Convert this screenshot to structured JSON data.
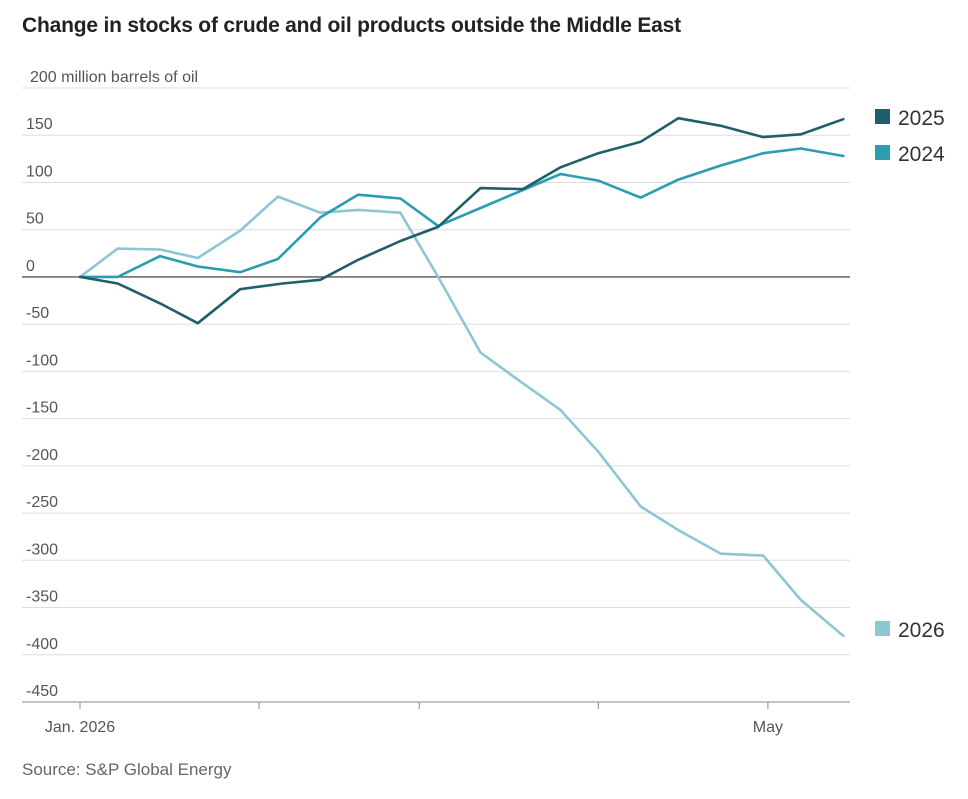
{
  "chart_data": {
    "type": "line",
    "title": "Change in stocks of crude and oil products outside the Middle East",
    "ylabel": "",
    "y_unit_label": "200 million barrels of oil",
    "source": "Source: S&P Global Energy",
    "ylim": [
      -450,
      200
    ],
    "y_ticks": [
      150,
      100,
      50,
      0,
      -50,
      -100,
      -150,
      -200,
      -250,
      -300,
      -350,
      -400,
      -450
    ],
    "y_tick_labels": [
      "150",
      "100",
      "50",
      "0",
      "-50",
      "-100",
      "-150",
      "-200",
      "-250",
      "-300",
      "-350",
      "-400",
      "-450"
    ],
    "x_range_days": [
      0,
      163
    ],
    "x_ticks_days": [
      0,
      38,
      72,
      110,
      146
    ],
    "x_tick_labels": [
      "Jan. 2026",
      "",
      "",
      "",
      "May"
    ],
    "grid": true,
    "legend": "right",
    "series": [
      {
        "name": "2025",
        "color": "#1f5f6b",
        "x_days": [
          0,
          8,
          17,
          25,
          34,
          43,
          51,
          59,
          68,
          76,
          85,
          94,
          102,
          110,
          119,
          127,
          136,
          145,
          153,
          162
        ],
        "values": [
          0,
          -7,
          -28,
          -49,
          -13,
          -7,
          -3,
          18,
          38,
          53,
          94,
          93,
          116,
          131,
          143,
          168,
          160,
          148,
          151,
          167
        ]
      },
      {
        "name": "2024",
        "color": "#2a9db0",
        "x_days": [
          0,
          8,
          17,
          25,
          34,
          42,
          51,
          59,
          68,
          76,
          85,
          94,
          102,
          110,
          119,
          127,
          136,
          145,
          153,
          162
        ],
        "values": [
          0,
          0,
          22,
          11,
          5,
          19,
          63,
          87,
          83,
          54,
          73,
          92,
          109,
          102,
          84,
          103,
          118,
          131,
          136,
          128
        ]
      },
      {
        "name": "2026",
        "color": "#8cc7d4",
        "x_days": [
          0,
          8,
          17,
          25,
          34,
          42,
          51,
          59,
          68,
          76,
          85,
          93,
          102,
          110,
          119,
          127,
          136,
          145,
          153,
          162
        ],
        "values": [
          0,
          30,
          29,
          20,
          49,
          85,
          68,
          71,
          68,
          0,
          -80,
          -109,
          -141,
          -185,
          -243,
          -268,
          -293,
          -295,
          -342,
          -380
        ]
      }
    ]
  }
}
